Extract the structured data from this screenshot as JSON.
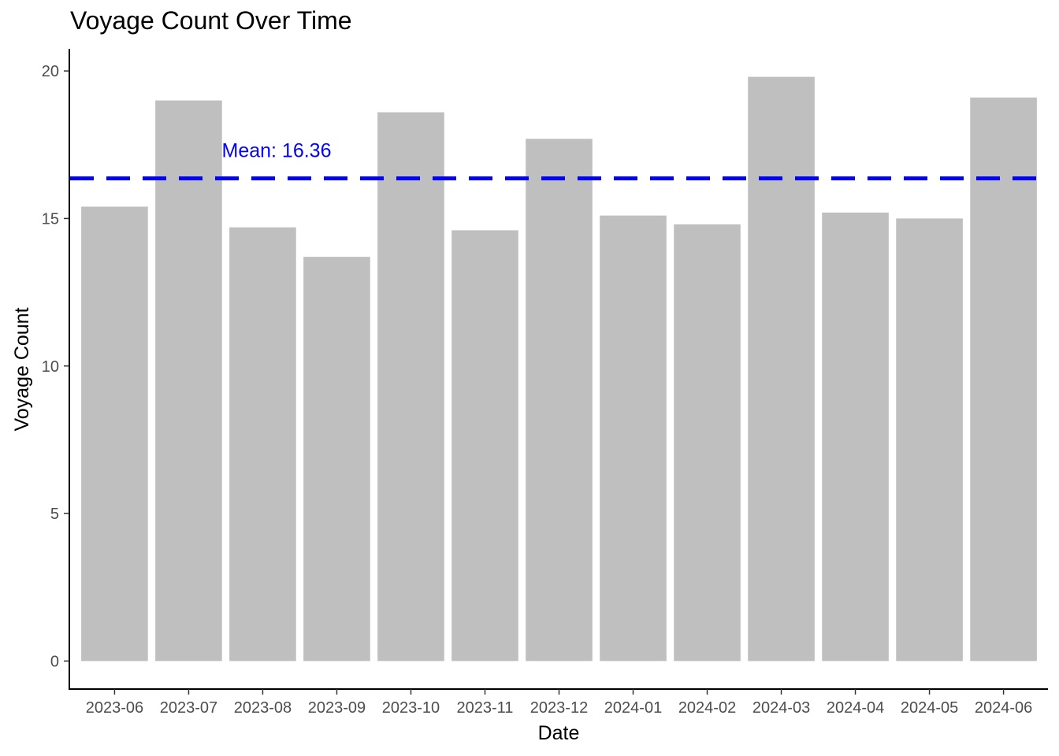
{
  "chart_data": {
    "type": "bar",
    "title": "Voyage Count Over Time",
    "xlabel": "Date",
    "ylabel": "Voyage Count",
    "categories": [
      "2023-06",
      "2023-07",
      "2023-08",
      "2023-09",
      "2023-10",
      "2023-11",
      "2023-12",
      "2024-01",
      "2024-02",
      "2024-03",
      "2024-04",
      "2024-05",
      "2024-06"
    ],
    "values": [
      15.4,
      19.0,
      14.7,
      13.7,
      18.6,
      14.6,
      17.7,
      15.1,
      14.8,
      19.8,
      15.2,
      15.0,
      19.1
    ],
    "ylim": [
      -0.95,
      20.75
    ],
    "yticks": [
      0,
      5,
      10,
      15,
      20
    ],
    "bar_color": "#bfbfbf",
    "grid": false,
    "legend": "none",
    "reference_line": {
      "type": "hline",
      "value": 16.36,
      "style": "dashed",
      "color": "#0000ff",
      "label": "Mean:  16.36"
    }
  }
}
